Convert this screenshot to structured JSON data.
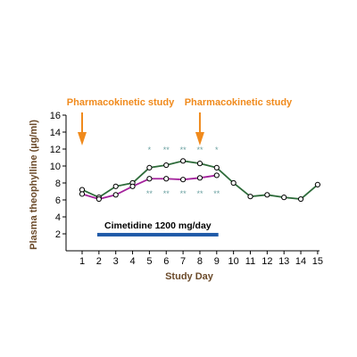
{
  "chart_data": {
    "type": "line",
    "ylabel": "Plasma theophylline (µg/ml)",
    "xlabel": "Study Day",
    "xlim": [
      1,
      15
    ],
    "ylim": [
      0,
      16
    ],
    "x_ticks": [
      1,
      2,
      3,
      4,
      5,
      6,
      7,
      8,
      9,
      10,
      11,
      12,
      13,
      14,
      15
    ],
    "y_ticks": [
      2,
      4,
      6,
      8,
      10,
      12,
      14,
      16
    ],
    "grid": false,
    "series": [
      {
        "color": "#2e6b3a",
        "x": [
          1,
          2,
          3,
          4,
          5,
          6,
          7,
          8,
          9,
          10,
          11,
          12,
          13,
          14,
          15
        ],
        "y": [
          7.2,
          6.3,
          7.6,
          8.0,
          9.8,
          10.1,
          10.6,
          10.3,
          9.8,
          8.0,
          6.4,
          6.6,
          6.3,
          6.1,
          7.8
        ]
      },
      {
        "color": "#a4239c",
        "x": [
          1,
          2,
          3,
          4,
          5,
          6,
          7,
          8,
          9
        ],
        "y": [
          6.7,
          6.1,
          6.6,
          7.6,
          8.5,
          8.5,
          8.4,
          8.6,
          8.9
        ]
      }
    ],
    "significance": [
      {
        "x": 5,
        "upper": "*",
        "lower": "**"
      },
      {
        "x": 6,
        "upper": "**",
        "lower": "**"
      },
      {
        "x": 7,
        "upper": "**",
        "lower": "**"
      },
      {
        "x": 8,
        "upper": "**",
        "lower": "**"
      },
      {
        "x": 9,
        "upper": "*",
        "lower": "**"
      }
    ],
    "treatment_bar": {
      "label": "Cimetidine 1200 mg/day",
      "x_start": 1.9,
      "x_end": 9.1,
      "color": "#1f5aa8"
    },
    "annotations": [
      {
        "label": "Pharmacokinetic study",
        "x": 1,
        "color": "#f08a1c"
      },
      {
        "label": "Pharmacokinetic study",
        "x": 8,
        "color": "#f08a1c"
      }
    ],
    "axis_label_color": "#6b4a2a",
    "marker_fill": "#ffffff",
    "significance_color": "#6aa0a0"
  }
}
